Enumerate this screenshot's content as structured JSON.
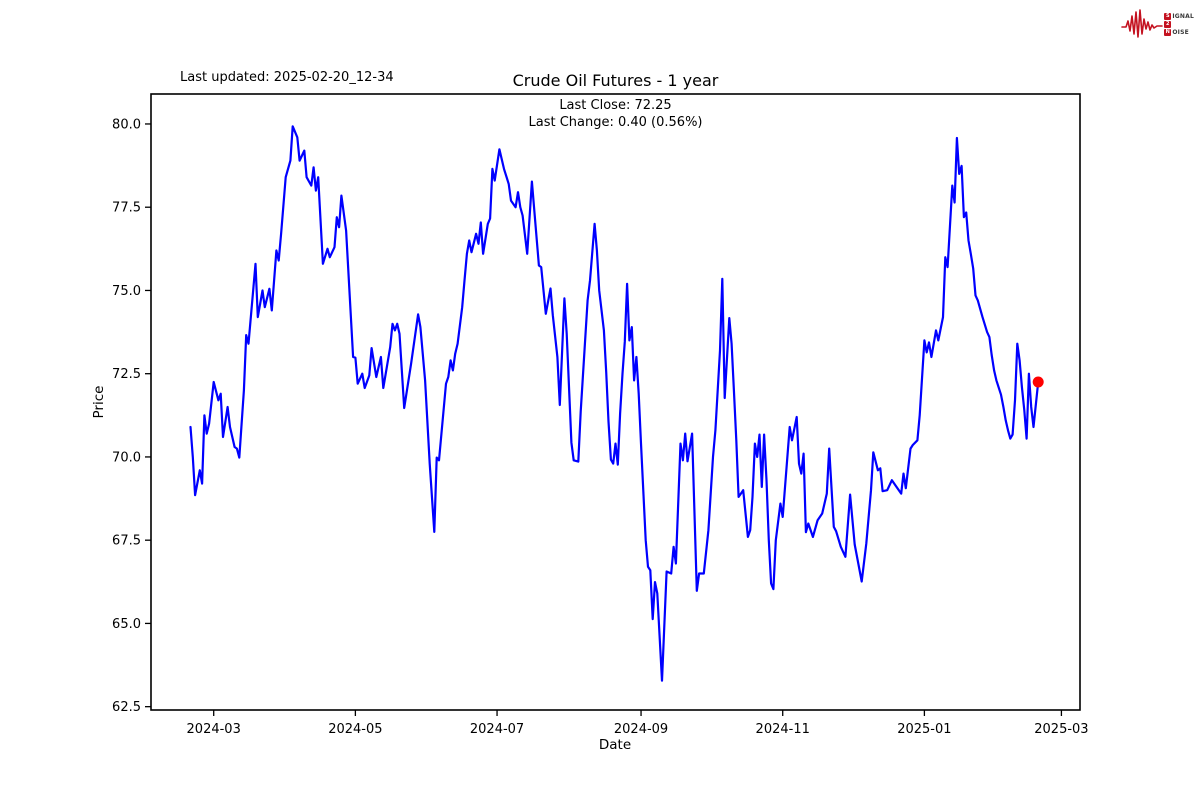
{
  "header": {
    "last_updated": "Last updated: 2025-02-20_12-34",
    "title": "Crude Oil Futures - 1 year",
    "subtitle_line1": "Last Close: 72.25",
    "subtitle_line2": "Last Change: 0.40 (0.56%)"
  },
  "logo": {
    "color": "#c41220",
    "row1_box": "S",
    "row1_text": "IGNAL",
    "row2_box": "2",
    "row2_text": "",
    "row3_box": "N",
    "row3_text": "OISE"
  },
  "chart_data": {
    "type": "line",
    "title": "Crude Oil Futures - 1 year",
    "xlabel": "Date",
    "ylabel": "Price",
    "last_close": 72.25,
    "last_change": "0.40 (0.56%)",
    "line_color": "#0000ff",
    "end_marker_color": "#ff0000",
    "grid": false,
    "x_axis": {
      "min": "2024-02-03",
      "max": "2025-03-09",
      "ticks": [
        {
          "date": "2024-03-01",
          "label": "2024-03"
        },
        {
          "date": "2024-05-01",
          "label": "2024-05"
        },
        {
          "date": "2024-07-01",
          "label": "2024-07"
        },
        {
          "date": "2024-09-01",
          "label": "2024-09"
        },
        {
          "date": "2024-11-01",
          "label": "2024-11"
        },
        {
          "date": "2025-01-01",
          "label": "2025-01"
        },
        {
          "date": "2025-03-01",
          "label": "2025-03"
        }
      ]
    },
    "y_axis": {
      "min": 62.4,
      "max": 80.9,
      "ticks": [
        {
          "value": 62.5,
          "label": "62.5"
        },
        {
          "value": 65.0,
          "label": "65.0"
        },
        {
          "value": 67.5,
          "label": "67.5"
        },
        {
          "value": 70.0,
          "label": "70.0"
        },
        {
          "value": 72.5,
          "label": "72.5"
        },
        {
          "value": 75.0,
          "label": "75.0"
        },
        {
          "value": 77.5,
          "label": "77.5"
        },
        {
          "value": 80.0,
          "label": "80.0"
        }
      ]
    },
    "series": [
      {
        "name": "Crude Oil Futures",
        "start_date": "2024-02-20",
        "points_format": "[days_from_start_date, price]",
        "points": [
          [
            0,
            70.9
          ],
          [
            1,
            70.0
          ],
          [
            2,
            68.85
          ],
          [
            4,
            69.6
          ],
          [
            5,
            69.2
          ],
          [
            6,
            71.25
          ],
          [
            7,
            70.7
          ],
          [
            8,
            71.0
          ],
          [
            10,
            72.25
          ],
          [
            12,
            71.7
          ],
          [
            13,
            71.9
          ],
          [
            14,
            70.6
          ],
          [
            16,
            71.5
          ],
          [
            17,
            70.9
          ],
          [
            19,
            70.3
          ],
          [
            20,
            70.25
          ],
          [
            21,
            69.98
          ],
          [
            23,
            72.0
          ],
          [
            24,
            73.66
          ],
          [
            25,
            73.4
          ],
          [
            28,
            75.8
          ],
          [
            29,
            74.2
          ],
          [
            31,
            75.0
          ],
          [
            32,
            74.5
          ],
          [
            34,
            75.05
          ],
          [
            35,
            74.4
          ],
          [
            37,
            76.2
          ],
          [
            38,
            75.9
          ],
          [
            39,
            76.7
          ],
          [
            41,
            78.4
          ],
          [
            43,
            78.9
          ],
          [
            44,
            79.93
          ],
          [
            46,
            79.6
          ],
          [
            47,
            78.9
          ],
          [
            49,
            79.2
          ],
          [
            50,
            78.4
          ],
          [
            52,
            78.15
          ],
          [
            53,
            78.7
          ],
          [
            54,
            78.0
          ],
          [
            55,
            78.4
          ],
          [
            57,
            75.8
          ],
          [
            59,
            76.25
          ],
          [
            60,
            76.0
          ],
          [
            62,
            76.3
          ],
          [
            63,
            77.2
          ],
          [
            64,
            76.9
          ],
          [
            65,
            77.85
          ],
          [
            67,
            76.8
          ],
          [
            70,
            73.0
          ],
          [
            71,
            72.98
          ],
          [
            72,
            72.2
          ],
          [
            74,
            72.5
          ],
          [
            75,
            72.07
          ],
          [
            77,
            72.45
          ],
          [
            78,
            73.27
          ],
          [
            80,
            72.4
          ],
          [
            82,
            73.0
          ],
          [
            83,
            72.07
          ],
          [
            86,
            73.3
          ],
          [
            87,
            74.0
          ],
          [
            88,
            73.8
          ],
          [
            89,
            74.0
          ],
          [
            90,
            73.7
          ],
          [
            92,
            71.47
          ],
          [
            95,
            72.8
          ],
          [
            98,
            74.28
          ],
          [
            99,
            73.9
          ],
          [
            101,
            72.3
          ],
          [
            103,
            69.8
          ],
          [
            105,
            67.75
          ],
          [
            106,
            69.98
          ],
          [
            107,
            69.9
          ],
          [
            110,
            72.2
          ],
          [
            111,
            72.4
          ],
          [
            112,
            72.9
          ],
          [
            113,
            72.6
          ],
          [
            114,
            73.1
          ],
          [
            115,
            73.4
          ],
          [
            117,
            74.5
          ],
          [
            118,
            75.3
          ],
          [
            119,
            76.1
          ],
          [
            120,
            76.5
          ],
          [
            121,
            76.15
          ],
          [
            123,
            76.7
          ],
          [
            124,
            76.4
          ],
          [
            125,
            77.04
          ],
          [
            126,
            76.1
          ],
          [
            128,
            77.0
          ],
          [
            129,
            77.16
          ],
          [
            130,
            78.65
          ],
          [
            131,
            78.3
          ],
          [
            133,
            79.24
          ],
          [
            135,
            78.65
          ],
          [
            137,
            78.2
          ],
          [
            138,
            77.7
          ],
          [
            140,
            77.5
          ],
          [
            141,
            77.95
          ],
          [
            142,
            77.5
          ],
          [
            143,
            77.25
          ],
          [
            145,
            76.1
          ],
          [
            147,
            78.27
          ],
          [
            150,
            75.75
          ],
          [
            151,
            75.7
          ],
          [
            153,
            74.3
          ],
          [
            155,
            75.06
          ],
          [
            156,
            74.26
          ],
          [
            158,
            73.0
          ],
          [
            159,
            71.56
          ],
          [
            161,
            74.76
          ],
          [
            162,
            73.7
          ],
          [
            164,
            70.43
          ],
          [
            165,
            69.9
          ],
          [
            167,
            69.86
          ],
          [
            168,
            71.36
          ],
          [
            171,
            74.7
          ],
          [
            172,
            75.3
          ],
          [
            174,
            77.0
          ],
          [
            175,
            76.2
          ],
          [
            176,
            75.0
          ],
          [
            178,
            73.8
          ],
          [
            179,
            72.55
          ],
          [
            180,
            71.06
          ],
          [
            181,
            69.92
          ],
          [
            182,
            69.8
          ],
          [
            183,
            70.4
          ],
          [
            184,
            69.77
          ],
          [
            185,
            71.3
          ],
          [
            186,
            72.5
          ],
          [
            187,
            73.46
          ],
          [
            188,
            75.2
          ],
          [
            189,
            73.5
          ],
          [
            190,
            73.9
          ],
          [
            191,
            72.3
          ],
          [
            192,
            73.0
          ],
          [
            193,
            71.9
          ],
          [
            194,
            70.4
          ],
          [
            196,
            67.5
          ],
          [
            197,
            66.7
          ],
          [
            198,
            66.6
          ],
          [
            199,
            65.13
          ],
          [
            200,
            66.24
          ],
          [
            201,
            65.9
          ],
          [
            203,
            63.28
          ],
          [
            205,
            66.56
          ],
          [
            207,
            66.5
          ],
          [
            208,
            67.3
          ],
          [
            209,
            66.8
          ],
          [
            211,
            70.4
          ],
          [
            212,
            69.9
          ],
          [
            213,
            70.7
          ],
          [
            214,
            69.87
          ],
          [
            216,
            70.7
          ],
          [
            218,
            65.98
          ],
          [
            219,
            66.5
          ],
          [
            221,
            66.5
          ],
          [
            223,
            67.8
          ],
          [
            225,
            70.0
          ],
          [
            226,
            70.8
          ],
          [
            228,
            73.2
          ],
          [
            229,
            75.35
          ],
          [
            230,
            71.77
          ],
          [
            232,
            74.17
          ],
          [
            233,
            73.4
          ],
          [
            234,
            72.0
          ],
          [
            235,
            70.5
          ],
          [
            236,
            68.8
          ],
          [
            237,
            68.9
          ],
          [
            238,
            69.0
          ],
          [
            240,
            67.6
          ],
          [
            241,
            67.8
          ],
          [
            242,
            68.8
          ],
          [
            243,
            70.4
          ],
          [
            244,
            70.0
          ],
          [
            245,
            70.67
          ],
          [
            246,
            69.1
          ],
          [
            247,
            70.67
          ],
          [
            248,
            69.3
          ],
          [
            249,
            67.5
          ],
          [
            250,
            66.2
          ],
          [
            251,
            66.03
          ],
          [
            252,
            67.5
          ],
          [
            254,
            68.6
          ],
          [
            255,
            68.2
          ],
          [
            258,
            70.9
          ],
          [
            259,
            70.5
          ],
          [
            261,
            71.2
          ],
          [
            262,
            69.8
          ],
          [
            263,
            69.5
          ],
          [
            264,
            70.1
          ],
          [
            265,
            67.74
          ],
          [
            266,
            68.0
          ],
          [
            268,
            67.6
          ],
          [
            270,
            68.1
          ],
          [
            272,
            68.3
          ],
          [
            274,
            68.9
          ],
          [
            275,
            70.25
          ],
          [
            277,
            67.9
          ],
          [
            278,
            67.77
          ],
          [
            280,
            67.3
          ],
          [
            282,
            67.0
          ],
          [
            284,
            68.87
          ],
          [
            286,
            67.37
          ],
          [
            289,
            66.26
          ],
          [
            291,
            67.4
          ],
          [
            293,
            69.0
          ],
          [
            294,
            70.14
          ],
          [
            296,
            69.6
          ],
          [
            297,
            69.66
          ],
          [
            298,
            68.97
          ],
          [
            300,
            69.0
          ],
          [
            302,
            69.3
          ],
          [
            304,
            69.1
          ],
          [
            306,
            68.9
          ],
          [
            307,
            69.5
          ],
          [
            308,
            69.06
          ],
          [
            310,
            70.25
          ],
          [
            311,
            70.36
          ],
          [
            313,
            70.5
          ],
          [
            314,
            71.25
          ],
          [
            316,
            73.5
          ],
          [
            317,
            73.14
          ],
          [
            318,
            73.44
          ],
          [
            319,
            73.0
          ],
          [
            321,
            73.8
          ],
          [
            322,
            73.5
          ],
          [
            324,
            74.2
          ],
          [
            325,
            76.0
          ],
          [
            326,
            75.7
          ],
          [
            328,
            78.15
          ],
          [
            329,
            77.64
          ],
          [
            330,
            79.58
          ],
          [
            331,
            78.5
          ],
          [
            332,
            78.74
          ],
          [
            333,
            77.2
          ],
          [
            334,
            77.34
          ],
          [
            335,
            76.5
          ],
          [
            336,
            76.1
          ],
          [
            337,
            75.66
          ],
          [
            338,
            74.85
          ],
          [
            339,
            74.7
          ],
          [
            341,
            74.2
          ],
          [
            343,
            73.75
          ],
          [
            344,
            73.6
          ],
          [
            345,
            73.06
          ],
          [
            346,
            72.6
          ],
          [
            347,
            72.3
          ],
          [
            349,
            71.87
          ],
          [
            350,
            71.5
          ],
          [
            351,
            71.1
          ],
          [
            352,
            70.8
          ],
          [
            353,
            70.55
          ],
          [
            354,
            70.67
          ],
          [
            355,
            71.7
          ],
          [
            356,
            73.4
          ],
          [
            357,
            72.9
          ],
          [
            358,
            72.1
          ],
          [
            359,
            71.4
          ],
          [
            360,
            70.55
          ],
          [
            361,
            72.5
          ],
          [
            362,
            71.5
          ],
          [
            363,
            70.9
          ],
          [
            365,
            72.25
          ]
        ]
      }
    ]
  }
}
